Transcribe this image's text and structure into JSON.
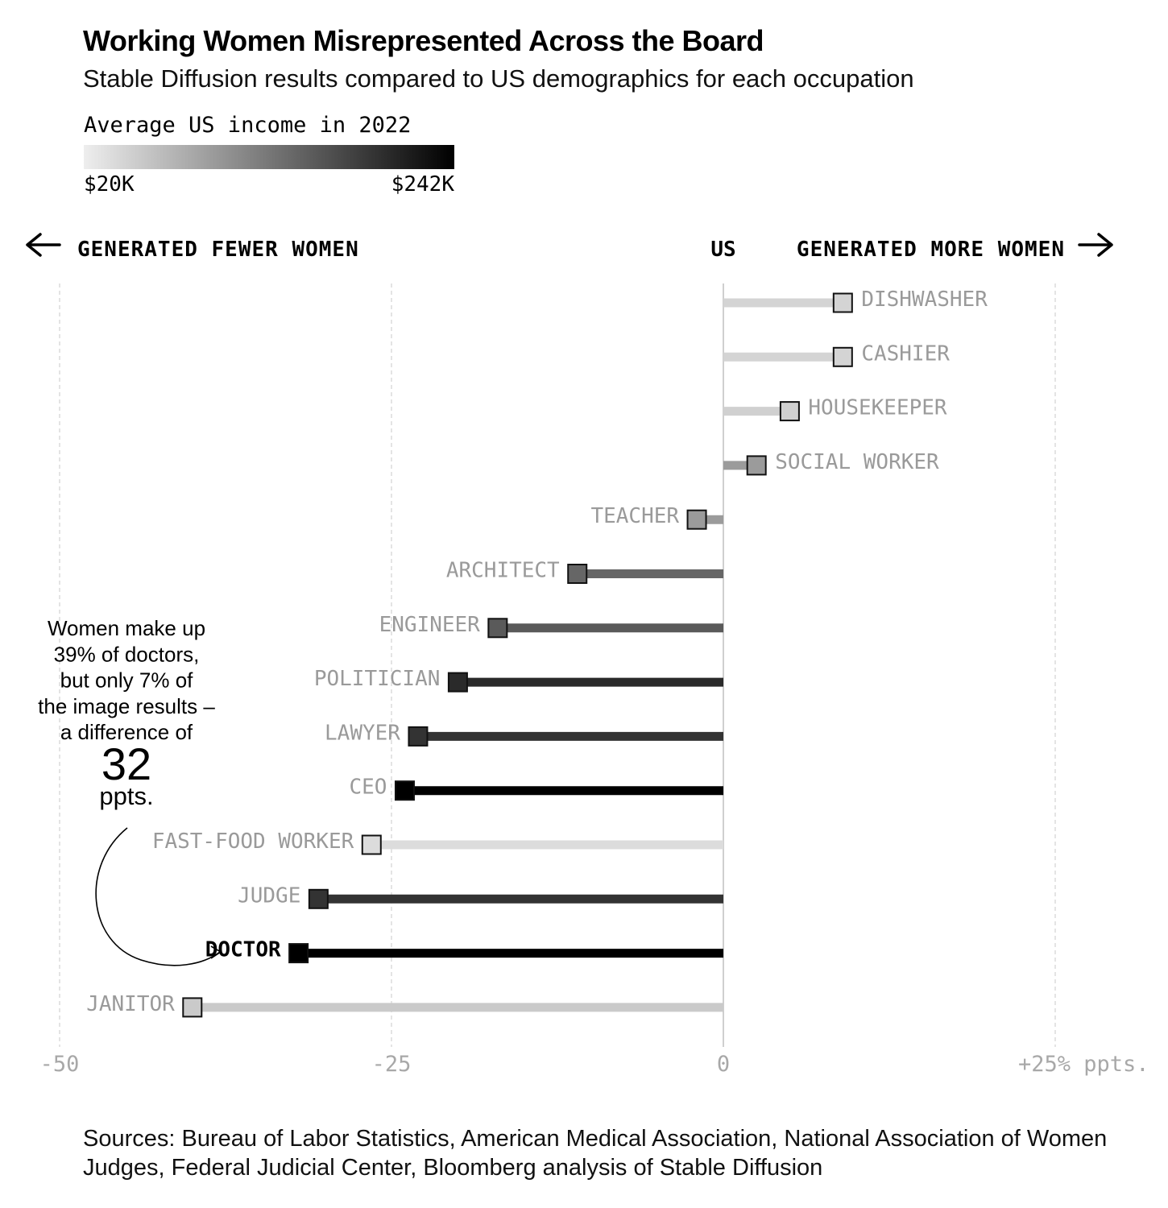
{
  "title": "Working Women Misrepresented Across the Board",
  "subtitle": "Stable Diffusion results compared to US demographics for each occupation",
  "legend": {
    "title": "Average US income in 2022",
    "min_label": "$20K",
    "max_label": "$242K",
    "colors": [
      "#eeeeee",
      "#000000"
    ]
  },
  "direction_labels": {
    "left": "GENERATED FEWER WOMEN",
    "center": "US",
    "right": "GENERATED MORE WOMEN",
    "left_icon": "arrow-left-icon",
    "right_icon": "arrow-right-icon"
  },
  "annotation": {
    "text_lines": [
      "Women make up",
      "39% of doctors,",
      "but only 7% of",
      "the image results –",
      "a difference of"
    ],
    "big_number": "32",
    "unit": "ppts."
  },
  "sources": "Sources: Bureau of Labor Statistics, American Medical Association, National Association of Women Judges, Federal Judicial Center, Bloomberg analysis of Stable Diffusion",
  "chart_data": {
    "type": "bar",
    "orientation": "horizontal",
    "xlim": [
      -50,
      25
    ],
    "x_ticks": [
      {
        "value": -50,
        "label": "-50"
      },
      {
        "value": -25,
        "label": "-25"
      },
      {
        "value": 0,
        "label": "0"
      },
      {
        "value": 25,
        "label": "+25% ppts."
      }
    ],
    "grid": true,
    "highlight": "DOCTOR",
    "categories": [
      "DISHWASHER",
      "CASHIER",
      "HOUSEKEEPER",
      "SOCIAL WORKER",
      "TEACHER",
      "ARCHITECT",
      "ENGINEER",
      "POLITICIAN",
      "LAWYER",
      "CEO",
      "FAST-FOOD WORKER",
      "JUDGE",
      "DOCTOR",
      "JANITOR"
    ],
    "values": [
      9,
      9,
      5,
      2.5,
      -2,
      -11,
      -17,
      -20,
      -23,
      -24,
      -26.5,
      -30.5,
      -32,
      -40
    ],
    "colors": [
      "#d4d4d4",
      "#d4d4d4",
      "#d0d0d0",
      "#9b9b9b",
      "#9b9b9b",
      "#666666",
      "#5a5a5a",
      "#2a2a2a",
      "#333333",
      "#000000",
      "#dcdcdc",
      "#333333",
      "#000000",
      "#cacaca"
    ]
  }
}
